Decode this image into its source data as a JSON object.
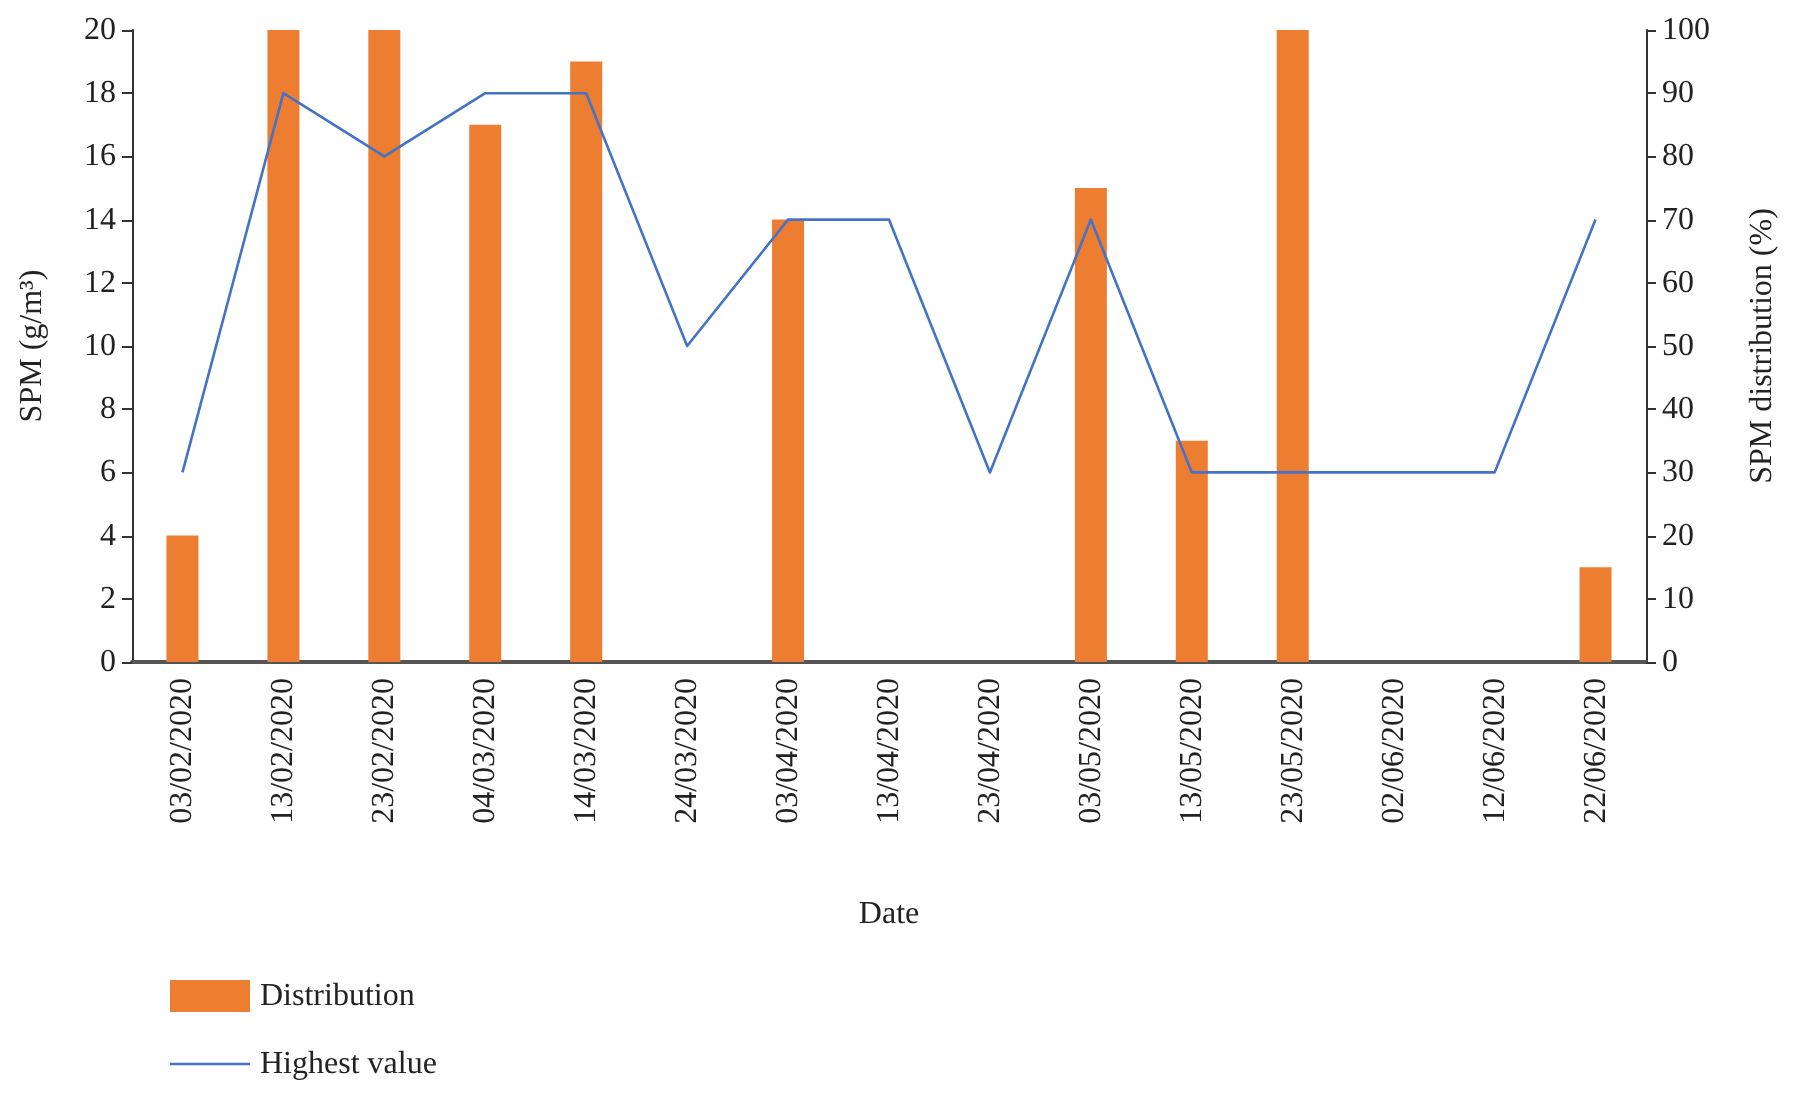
{
  "chart_data": {
    "type": "bar",
    "xlabel": "Date",
    "ylabel": "SPM (g/m³)",
    "y2label": "SPM distribution (%)",
    "categories": [
      "03/02/2020",
      "13/02/2020",
      "23/02/2020",
      "04/03/2020",
      "14/03/2020",
      "24/03/2020",
      "03/04/2020",
      "13/04/2020",
      "23/04/2020",
      "03/05/2020",
      "13/05/2020",
      "23/05/2020",
      "02/06/2020",
      "12/06/2020",
      "22/06/2020"
    ],
    "series": [
      {
        "name": "Distribution",
        "axis": "y2",
        "color": "#ed7d31",
        "values": [
          20,
          100,
          100,
          85,
          95,
          null,
          70,
          null,
          null,
          75,
          35,
          100,
          null,
          null,
          15
        ]
      },
      {
        "name": "Highest value",
        "type": "line",
        "color": "#4472c4",
        "values": [
          6,
          18,
          16,
          18,
          18,
          10,
          14,
          14,
          6,
          14,
          6,
          6,
          6,
          6,
          14
        ]
      }
    ],
    "ylim": [
      0,
      20
    ],
    "yticks": [
      0,
      2,
      4,
      6,
      8,
      10,
      12,
      14,
      16,
      18,
      20
    ],
    "y2lim": [
      0,
      100
    ],
    "y2ticks": [
      0,
      10,
      20,
      30,
      40,
      50,
      60,
      70,
      80,
      90,
      100
    ],
    "grid": false,
    "legend": "bottom left",
    "marker": "none",
    "line_style": "solid"
  }
}
